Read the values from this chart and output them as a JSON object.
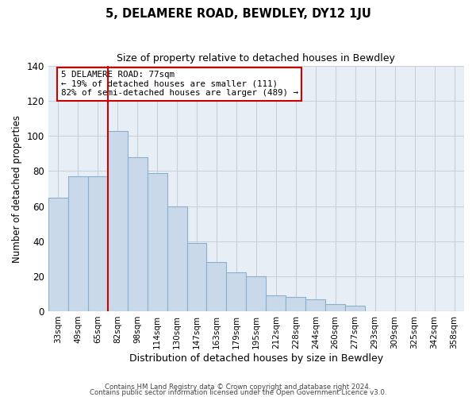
{
  "title": "5, DELAMERE ROAD, BEWDLEY, DY12 1JU",
  "subtitle": "Size of property relative to detached houses in Bewdley",
  "xlabel": "Distribution of detached houses by size in Bewdley",
  "ylabel": "Number of detached properties",
  "bar_labels": [
    "33sqm",
    "49sqm",
    "65sqm",
    "82sqm",
    "98sqm",
    "114sqm",
    "130sqm",
    "147sqm",
    "163sqm",
    "179sqm",
    "195sqm",
    "212sqm",
    "228sqm",
    "244sqm",
    "260sqm",
    "277sqm",
    "293sqm",
    "309sqm",
    "325sqm",
    "342sqm",
    "358sqm"
  ],
  "bar_values": [
    65,
    77,
    77,
    103,
    88,
    79,
    60,
    39,
    28,
    22,
    20,
    9,
    8,
    7,
    4,
    3,
    0,
    0,
    0,
    0,
    0
  ],
  "bar_color": "#c9d9ea",
  "bar_edge_color": "#8ab0cc",
  "vline_color": "#cc0000",
  "annotation_title": "5 DELAMERE ROAD: 77sqm",
  "annotation_line1": "← 19% of detached houses are smaller (111)",
  "annotation_line2": "82% of semi-detached houses are larger (489) →",
  "annotation_box_color": "#ffffff",
  "annotation_box_edge": "#cc0000",
  "ylim": [
    0,
    140
  ],
  "yticks": [
    0,
    20,
    40,
    60,
    80,
    100,
    120,
    140
  ],
  "bg_color": "#e8eef5",
  "grid_color": "#c8d0da",
  "footer1": "Contains HM Land Registry data © Crown copyright and database right 2024.",
  "footer2": "Contains public sector information licensed under the Open Government Licence v3.0."
}
